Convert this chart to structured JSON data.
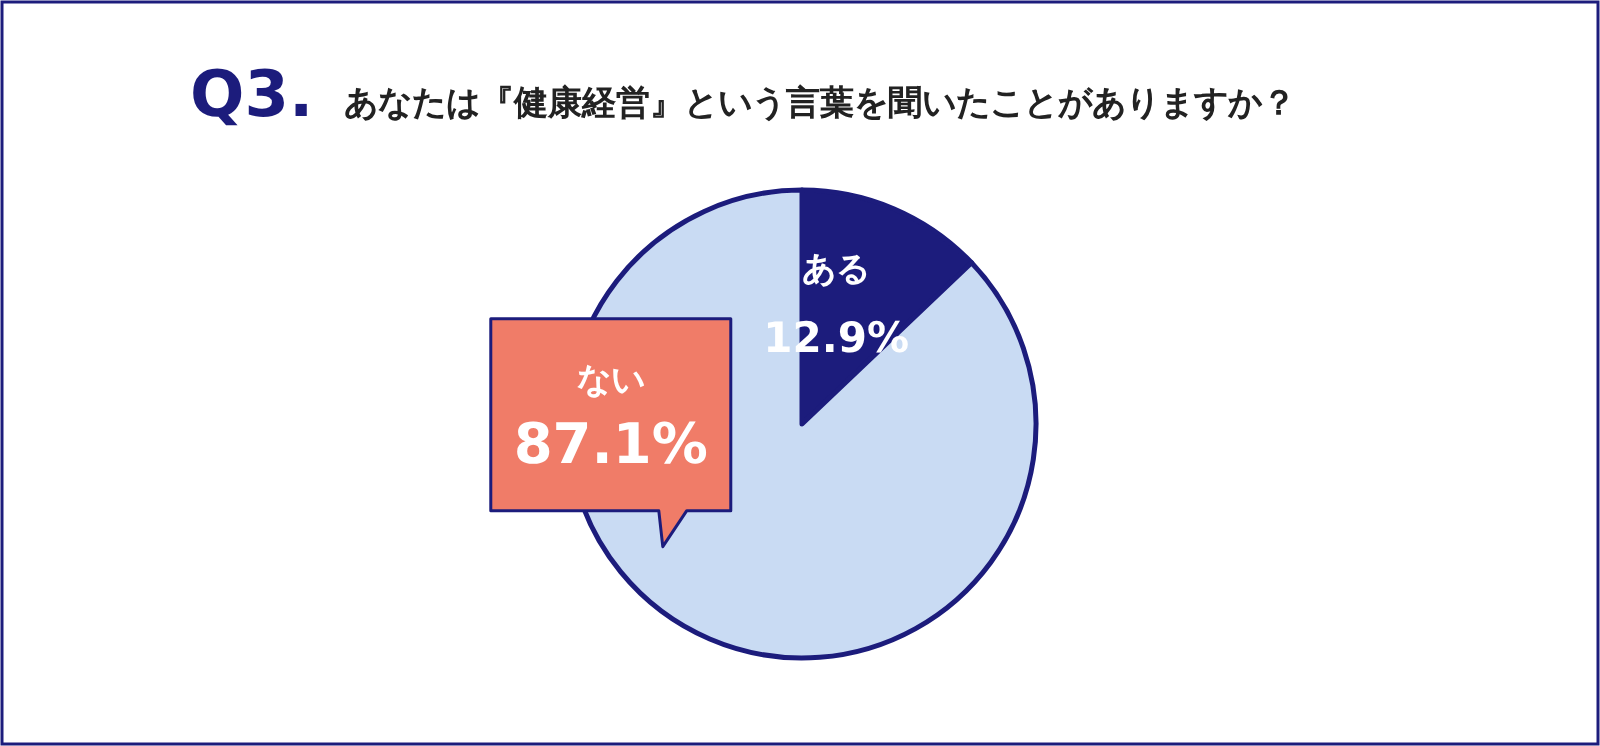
{
  "chart_data": {
    "type": "pie",
    "title": "Q3.",
    "subtitle": "あなたは『健康経営』という言葉を聞いたことがありますか？",
    "categories": [
      "ある",
      "ない"
    ],
    "values": [
      12.9,
      87.1
    ],
    "value_labels": [
      "12.9%",
      "87.1%"
    ],
    "colors": [
      "#1c1c7c",
      "#c9dbf3"
    ]
  }
}
